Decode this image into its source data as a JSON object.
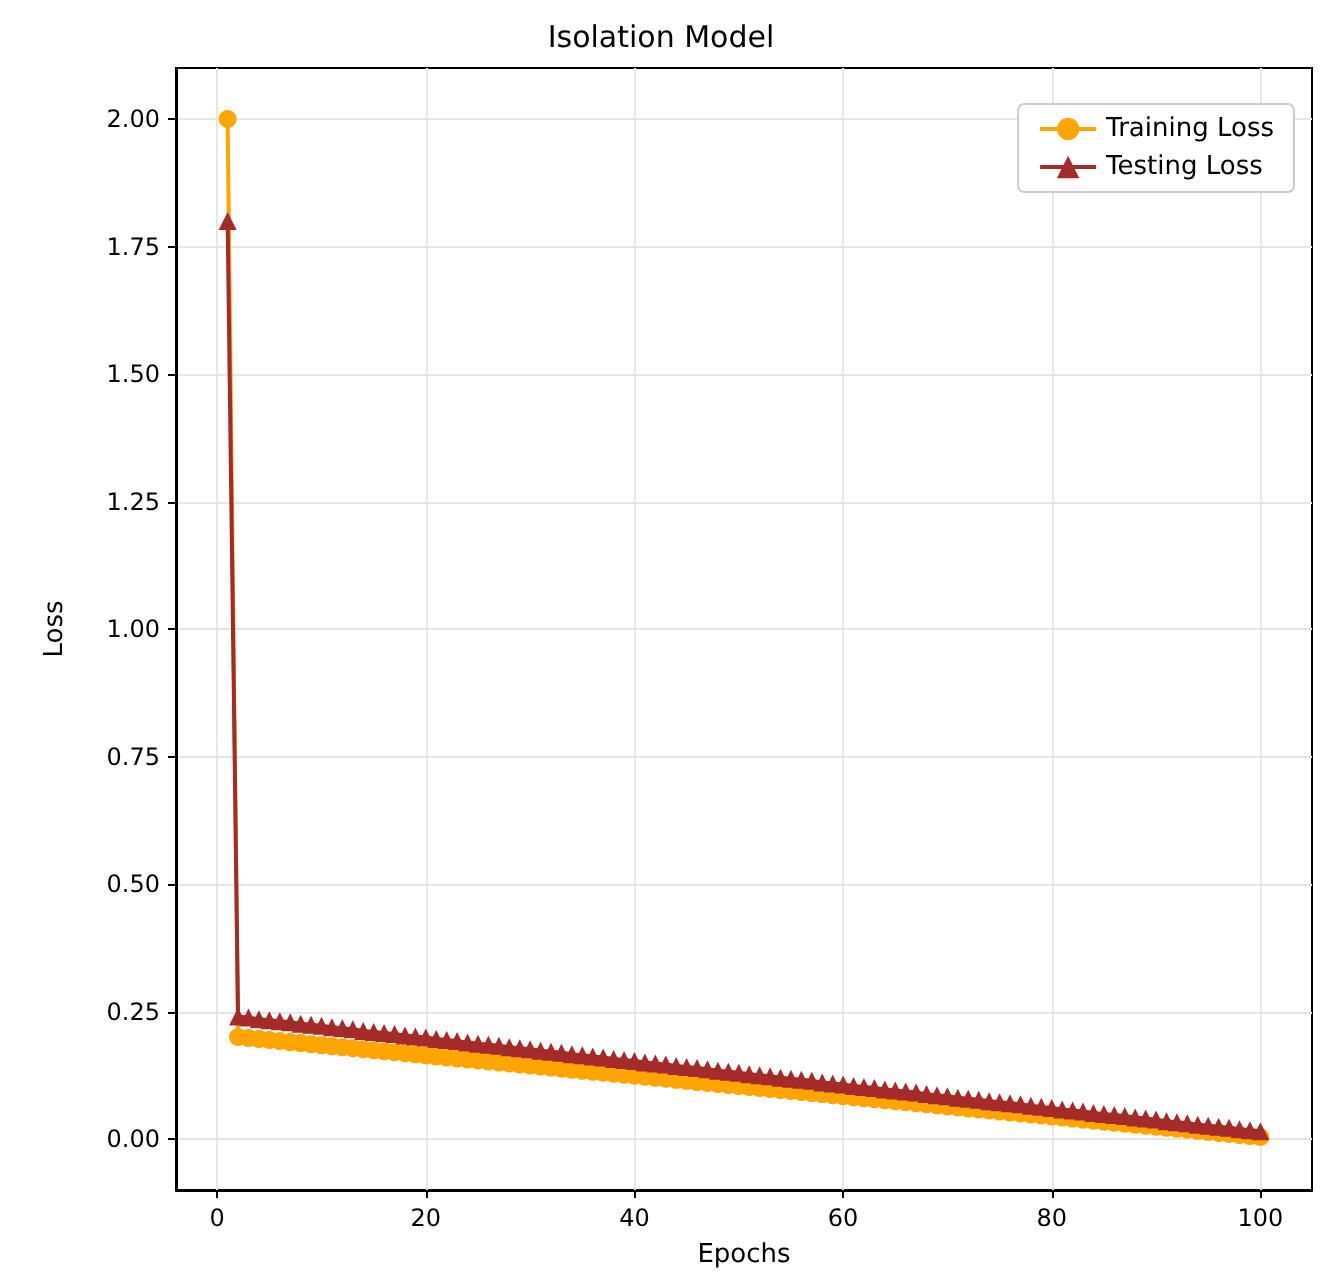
{
  "chart_data": {
    "type": "line",
    "title": "Isolation Model",
    "xlabel": "Epochs",
    "ylabel": "Loss",
    "x": [
      1,
      2,
      3,
      4,
      5,
      6,
      7,
      8,
      9,
      10,
      11,
      12,
      13,
      14,
      15,
      16,
      17,
      18,
      19,
      20,
      21,
      22,
      23,
      24,
      25,
      26,
      27,
      28,
      29,
      30,
      31,
      32,
      33,
      34,
      35,
      36,
      37,
      38,
      39,
      40,
      41,
      42,
      43,
      44,
      45,
      46,
      47,
      48,
      49,
      50,
      51,
      52,
      53,
      54,
      55,
      56,
      57,
      58,
      59,
      60,
      61,
      62,
      63,
      64,
      65,
      66,
      67,
      68,
      69,
      70,
      71,
      72,
      73,
      74,
      75,
      76,
      77,
      78,
      79,
      80,
      81,
      82,
      83,
      84,
      85,
      86,
      87,
      88,
      89,
      90,
      91,
      92,
      93,
      94,
      95,
      96,
      97,
      98,
      99,
      100
    ],
    "series": [
      {
        "name": "Training Loss",
        "color": "#ffa500",
        "marker": "circle",
        "values": [
          2.0,
          0.2,
          0.198,
          0.196,
          0.194,
          0.192,
          0.19,
          0.188,
          0.186,
          0.184,
          0.182,
          0.18,
          0.178,
          0.176,
          0.174,
          0.172,
          0.17,
          0.168,
          0.166,
          0.164,
          0.162,
          0.16,
          0.158,
          0.156,
          0.154,
          0.152,
          0.15,
          0.148,
          0.146,
          0.144,
          0.142,
          0.14,
          0.138,
          0.136,
          0.134,
          0.132,
          0.13,
          0.128,
          0.126,
          0.124,
          0.122,
          0.12,
          0.118,
          0.116,
          0.114,
          0.112,
          0.11,
          0.108,
          0.106,
          0.104,
          0.102,
          0.1,
          0.098,
          0.096,
          0.094,
          0.092,
          0.09,
          0.088,
          0.086,
          0.084,
          0.082,
          0.08,
          0.078,
          0.076,
          0.074,
          0.072,
          0.07,
          0.068,
          0.066,
          0.064,
          0.062,
          0.06,
          0.058,
          0.056,
          0.054,
          0.052,
          0.05,
          0.048,
          0.046,
          0.044,
          0.042,
          0.04,
          0.038,
          0.036,
          0.034,
          0.032,
          0.03,
          0.028,
          0.026,
          0.024,
          0.022,
          0.02,
          0.018,
          0.016,
          0.014,
          0.012,
          0.01,
          0.008,
          0.006,
          0.004
        ]
      },
      {
        "name": "Testing Loss",
        "color": "#a52a2a",
        "marker": "triangle",
        "values": [
          1.8,
          0.24,
          0.238,
          0.235,
          0.233,
          0.231,
          0.229,
          0.226,
          0.224,
          0.222,
          0.219,
          0.217,
          0.215,
          0.212,
          0.21,
          0.208,
          0.206,
          0.203,
          0.201,
          0.199,
          0.196,
          0.194,
          0.192,
          0.189,
          0.187,
          0.185,
          0.183,
          0.18,
          0.178,
          0.176,
          0.173,
          0.171,
          0.169,
          0.166,
          0.164,
          0.162,
          0.16,
          0.157,
          0.155,
          0.153,
          0.15,
          0.148,
          0.146,
          0.143,
          0.141,
          0.139,
          0.137,
          0.134,
          0.132,
          0.13,
          0.127,
          0.125,
          0.123,
          0.12,
          0.118,
          0.116,
          0.114,
          0.111,
          0.109,
          0.107,
          0.104,
          0.102,
          0.1,
          0.097,
          0.095,
          0.093,
          0.091,
          0.088,
          0.086,
          0.084,
          0.081,
          0.079,
          0.077,
          0.074,
          0.072,
          0.07,
          0.068,
          0.065,
          0.063,
          0.061,
          0.058,
          0.056,
          0.054,
          0.051,
          0.049,
          0.047,
          0.045,
          0.042,
          0.04,
          0.038,
          0.035,
          0.033,
          0.031,
          0.028,
          0.026,
          0.024,
          0.022,
          0.019,
          0.017,
          0.015
        ]
      }
    ],
    "xlim": [
      -3.95,
      104.95
    ],
    "xticks": [
      0,
      20,
      40,
      60,
      80,
      100
    ],
    "ylim": [
      -0.1,
      2.1
    ],
    "yticks": [
      {
        "value": 0,
        "label": "0.00"
      },
      {
        "value": 0.25,
        "label": "0.25"
      },
      {
        "value": 0.5,
        "label": "0.50"
      },
      {
        "value": 0.75,
        "label": "0.75"
      },
      {
        "value": 1,
        "label": "1.00"
      },
      {
        "value": 1.25,
        "label": "1.25"
      },
      {
        "value": 1.5,
        "label": "1.50"
      },
      {
        "value": 1.75,
        "label": "1.75"
      },
      {
        "value": 2,
        "label": "2.00"
      }
    ],
    "grid": true,
    "legend": "top right",
    "line_style": "solid"
  }
}
